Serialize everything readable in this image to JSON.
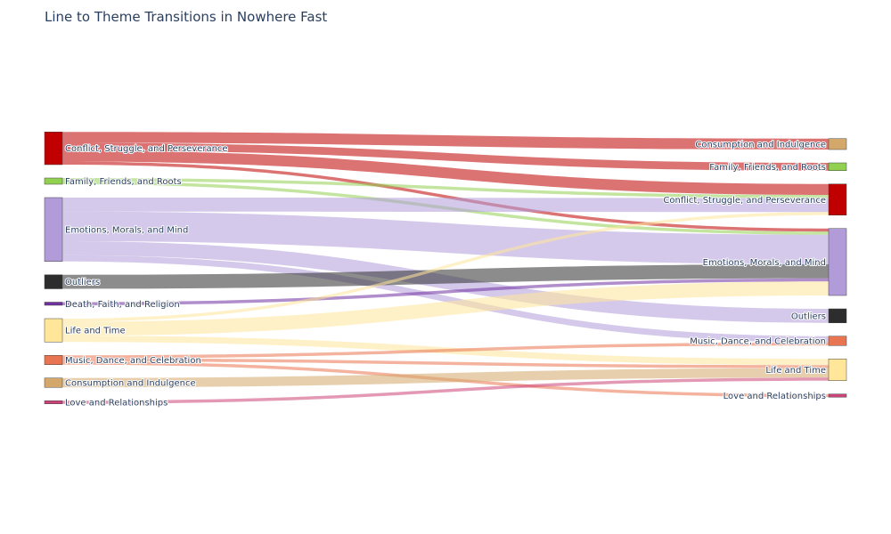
{
  "chart_data": {
    "type": "sankey",
    "title": "Line to Theme Transitions in Nowhere Fast",
    "source_nodes": [
      {
        "label": "Conflict, Struggle, and Perseverance",
        "color": "#c00000"
      },
      {
        "label": "Family, Friends, and Roots",
        "color": "#92d050"
      },
      {
        "label": "Emotions, Morals, and Mind",
        "color": "#b19cd9"
      },
      {
        "label": "Outliers",
        "color": "#2d2d2d"
      },
      {
        "label": "Death, Faith, and Religion",
        "color": "#7030a0"
      },
      {
        "label": "Life and Time",
        "color": "#ffe699"
      },
      {
        "label": "Music, Dance, and Celebration",
        "color": "#e97451"
      },
      {
        "label": "Consumption and Indulgence",
        "color": "#d4a76a"
      },
      {
        "label": "Love and Relationships",
        "color": "#cc4477"
      }
    ],
    "target_nodes": [
      {
        "label": "Consumption and Indulgence",
        "color": "#d4a76a"
      },
      {
        "label": "Family, Friends, and Roots",
        "color": "#92d050"
      },
      {
        "label": "Conflict, Struggle, and Perseverance",
        "color": "#c00000"
      },
      {
        "label": "Emotions, Morals, and Mind",
        "color": "#b19cd9"
      },
      {
        "label": "Outliers",
        "color": "#2d2d2d"
      },
      {
        "label": "Music, Dance, and Celebration",
        "color": "#e97451"
      },
      {
        "label": "Life and Time",
        "color": "#ffe699"
      },
      {
        "label": "Love and Relationships",
        "color": "#cc4477"
      }
    ],
    "links": [
      {
        "source": 0,
        "target": 0,
        "value": 7
      },
      {
        "source": 0,
        "target": 1,
        "value": 5
      },
      {
        "source": 0,
        "target": 2,
        "value": 7
      },
      {
        "source": 0,
        "target": 3,
        "value": 2
      },
      {
        "source": 1,
        "target": 2,
        "value": 2
      },
      {
        "source": 1,
        "target": 3,
        "value": 2
      },
      {
        "source": 2,
        "target": 2,
        "value": 9
      },
      {
        "source": 2,
        "target": 3,
        "value": 19
      },
      {
        "source": 2,
        "target": 4,
        "value": 9
      },
      {
        "source": 2,
        "target": 5,
        "value": 4
      },
      {
        "source": 3,
        "target": 3,
        "value": 9
      },
      {
        "source": 4,
        "target": 3,
        "value": 2
      },
      {
        "source": 5,
        "target": 2,
        "value": 2
      },
      {
        "source": 5,
        "target": 3,
        "value": 9
      },
      {
        "source": 5,
        "target": 6,
        "value": 4
      },
      {
        "source": 6,
        "target": 5,
        "value": 2
      },
      {
        "source": 6,
        "target": 6,
        "value": 2
      },
      {
        "source": 6,
        "target": 7,
        "value": 2
      },
      {
        "source": 7,
        "target": 6,
        "value": 6
      },
      {
        "source": 8,
        "target": 6,
        "value": 2
      }
    ]
  }
}
